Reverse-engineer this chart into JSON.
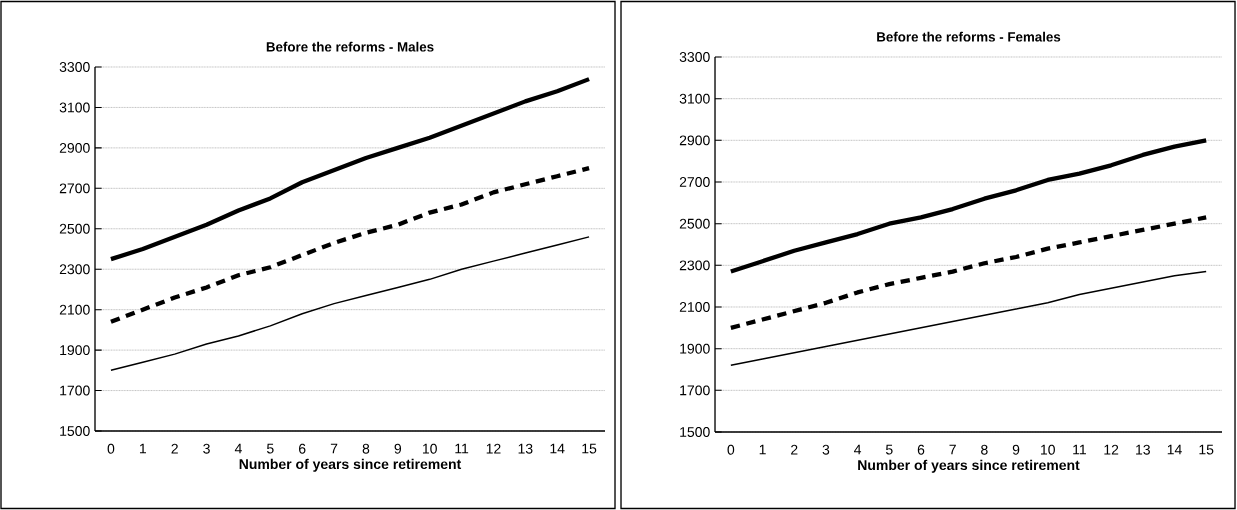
{
  "chart_data": [
    {
      "type": "line",
      "title": "Before the reforms - Males",
      "xlabel": "Number of years since retirement",
      "categories": [
        "0",
        "1",
        "2",
        "3",
        "4",
        "5",
        "6",
        "7",
        "8",
        "9",
        "10",
        "11",
        "12",
        "13",
        "14",
        "15"
      ],
      "series": [
        {
          "color": "#000000",
          "line_style": "solid",
          "values": [
            2350,
            2400,
            2460,
            2520,
            2590,
            2650,
            2730,
            2790,
            2850,
            2900,
            2950,
            3010,
            3070,
            3130,
            3180,
            3240
          ]
        },
        {
          "color": "#000000",
          "line_style": "dashed",
          "values": [
            2040,
            2100,
            2160,
            2210,
            2270,
            2310,
            2370,
            2430,
            2480,
            2520,
            2580,
            2620,
            2680,
            2720,
            2760,
            2800
          ]
        },
        {
          "color": "#000000",
          "line_style": "solid",
          "values": [
            1800,
            1840,
            1880,
            1930,
            1970,
            2020,
            2080,
            2130,
            2170,
            2210,
            2250,
            2300,
            2340,
            2380,
            2420,
            2460
          ]
        }
      ],
      "ylim": [
        1500,
        3300
      ],
      "yticks": [
        1500,
        1700,
        1900,
        2100,
        2300,
        2500,
        2700,
        2900,
        3100,
        3300
      ],
      "grid": "y"
    },
    {
      "type": "line",
      "title": "Before the reforms - Females",
      "xlabel": "Number of years since retirement",
      "categories": [
        "0",
        "1",
        "2",
        "3",
        "4",
        "5",
        "6",
        "7",
        "8",
        "9",
        "10",
        "11",
        "12",
        "13",
        "14",
        "15"
      ],
      "series": [
        {
          "color": "#000000",
          "line_style": "solid",
          "values": [
            2270,
            2320,
            2370,
            2410,
            2450,
            2500,
            2530,
            2570,
            2620,
            2660,
            2710,
            2740,
            2780,
            2830,
            2870,
            2900
          ]
        },
        {
          "color": "#000000",
          "line_style": "dashed",
          "values": [
            2000,
            2040,
            2080,
            2120,
            2170,
            2210,
            2240,
            2270,
            2310,
            2340,
            2380,
            2410,
            2440,
            2470,
            2500,
            2530
          ]
        },
        {
          "color": "#000000",
          "line_style": "solid",
          "values": [
            1820,
            1850,
            1880,
            1910,
            1940,
            1970,
            2000,
            2030,
            2060,
            2090,
            2120,
            2160,
            2190,
            2220,
            2250,
            2270
          ]
        }
      ],
      "ylim": [
        1500,
        3300
      ],
      "yticks": [
        1500,
        1700,
        1900,
        2100,
        2300,
        2500,
        2700,
        2900,
        3100,
        3300
      ],
      "grid": "y"
    }
  ]
}
